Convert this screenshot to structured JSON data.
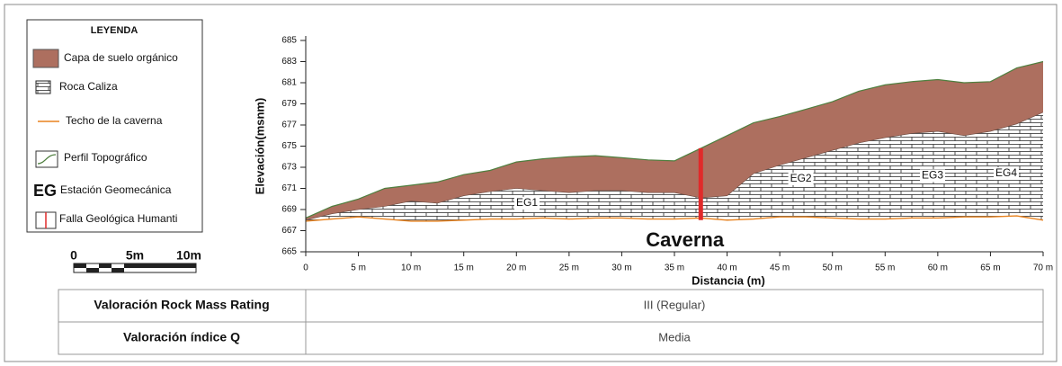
{
  "chart_data": {
    "type": "profile",
    "xlabel": "Distancia (m)",
    "ylabel": "Elevación(msnm)",
    "xlim": [
      0,
      70
    ],
    "ylim": [
      665,
      685
    ],
    "xticks": [
      0,
      {
        "value": 5,
        "label": "5 m"
      },
      {
        "value": 10,
        "label": "10 m"
      },
      {
        "value": 15,
        "label": "15 m"
      },
      {
        "value": 20,
        "label": "20 m"
      },
      {
        "value": 25,
        "label": "25 m"
      },
      {
        "value": 30,
        "label": "30 m"
      },
      {
        "value": 35,
        "label": "35 m"
      },
      {
        "value": 40,
        "label": "40 m"
      },
      {
        "value": 45,
        "label": "45 m"
      },
      {
        "value": 50,
        "label": "50 m"
      },
      {
        "value": 55,
        "label": "55 m"
      },
      {
        "value": 60,
        "label": "60 m"
      },
      {
        "value": 65,
        "label": "65 m"
      },
      {
        "value": 70,
        "label": "70 m"
      }
    ],
    "yticks": [
      665,
      667,
      669,
      671,
      673,
      675,
      677,
      679,
      681,
      683,
      685
    ],
    "x": [
      0,
      2.5,
      5,
      7.5,
      10,
      12.5,
      15,
      17.5,
      20,
      22.5,
      25,
      27.5,
      30,
      32.5,
      35,
      37.5,
      40,
      42.5,
      45,
      47.5,
      50,
      52.5,
      55,
      57.5,
      60,
      62.5,
      65,
      67.5,
      70
    ],
    "surface": {
      "color": "#4f7f3f",
      "fill": "#ad6f5f",
      "values": [
        668.2,
        669.3,
        670,
        671,
        671.3,
        671.6,
        672.3,
        672.7,
        673.5,
        673.8,
        674,
        674.1,
        673.9,
        673.7,
        673.6,
        674.8,
        676,
        677.2,
        677.8,
        678.5,
        679.2,
        680.2,
        680.8,
        681.1,
        681.3,
        681,
        681.1,
        682.4,
        683
      ]
    },
    "rock_top": {
      "values": [
        668,
        668.6,
        669,
        669.3,
        669.8,
        669.6,
        670.3,
        670.7,
        671,
        670.8,
        670.6,
        670.8,
        670.8,
        670.6,
        670.6,
        670.1,
        670.3,
        672.4,
        673.2,
        673.9,
        674.6,
        675.3,
        675.8,
        676.2,
        676.4,
        676,
        676.4,
        677.1,
        678.2
      ]
    },
    "cavern_roof": {
      "color": "#e8821e",
      "values": [
        667.9,
        668.1,
        668.3,
        668.1,
        667.9,
        667.9,
        668,
        668.1,
        668.1,
        668.2,
        668.1,
        668.2,
        668.2,
        668.1,
        668.1,
        668.2,
        668,
        668.1,
        668.3,
        668.3,
        668.2,
        668.1,
        668.1,
        668.2,
        668.2,
        668.3,
        668.3,
        668.4,
        668
      ]
    },
    "fault": {
      "color": "#e02a2a",
      "x": 37.5,
      "y": [
        668,
        674.8
      ]
    },
    "stations": [
      {
        "label": "EG1",
        "x": 21,
        "y": 669.6
      },
      {
        "label": "EG2",
        "x": 47,
        "y": 671.9
      },
      {
        "label": "EG3",
        "x": 59.5,
        "y": 672.2
      },
      {
        "label": "EG4",
        "x": 66.5,
        "y": 672.4
      }
    ],
    "cavern_label": {
      "text": "Caverna",
      "x": 36,
      "y": 666.5
    }
  },
  "legend": {
    "title": "LEYENDA",
    "items": [
      {
        "label": "Capa de suelo orgánico"
      },
      {
        "label": "Roca Caliza"
      },
      {
        "label": "Techo de la caverna"
      },
      {
        "label": "Perfil Topográfico"
      },
      {
        "symbol": "EG",
        "label": "Estación Geomecánica"
      },
      {
        "label": "Falla Geológica Humanti"
      }
    ]
  },
  "scale_bar": {
    "labels": [
      "0",
      "5m",
      "10m"
    ]
  },
  "table": {
    "rows": [
      [
        "Valoración Rock Mass Rating",
        "III (Regular)"
      ],
      [
        "Valoración índice Q",
        "Media"
      ]
    ]
  }
}
